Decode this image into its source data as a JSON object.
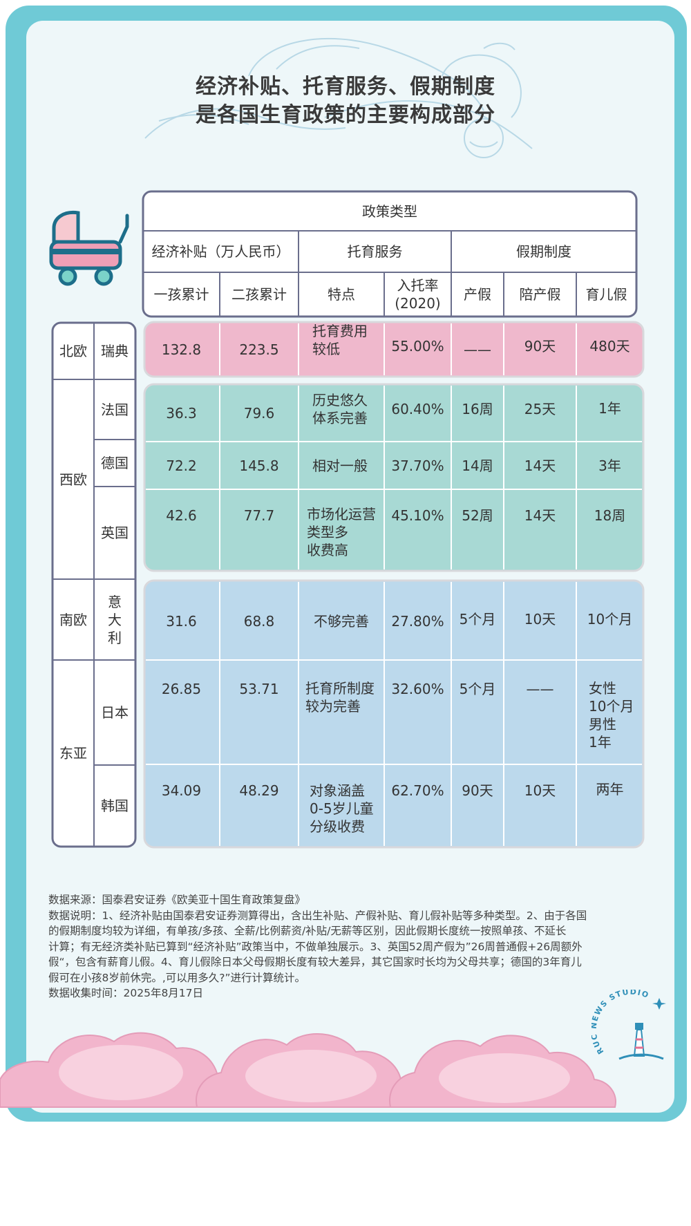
{
  "title_line1": "经济补贴、托育服务、假期制度",
  "title_line2": "是各国生育政策的主要构成部分",
  "header": {
    "policy_type": "政策类型",
    "group_subsidy": "经济补贴（万人民币）",
    "group_childcare": "托育服务",
    "group_leave": "假期制度",
    "col_first_child": "一孩累计",
    "col_second_child": "二孩累计",
    "col_feature": "特点",
    "col_enrollment_line1": "入托率",
    "col_enrollment_line2": "(2020)",
    "col_maternity": "产假",
    "col_paternity": "陪产假",
    "col_parental": "育儿假"
  },
  "regions": {
    "nordic": "北欧",
    "west_europe": "西欧",
    "south_europe": "南欧",
    "east_asia": "东亚"
  },
  "rows": [
    {
      "country": "瑞典",
      "first": "132.8",
      "second": "223.5",
      "feature": [
        "托育费用",
        "较低"
      ],
      "rate": "55.00%",
      "maternity": "——",
      "paternity": "90天",
      "parental": [
        "480天"
      ]
    },
    {
      "country": "法国",
      "first": "36.3",
      "second": "79.6",
      "feature": [
        "历史悠久",
        "体系完善"
      ],
      "rate": "60.40%",
      "maternity": "16周",
      "paternity": "25天",
      "parental": [
        "1年"
      ]
    },
    {
      "country": "德国",
      "first": "72.2",
      "second": "145.8",
      "feature": [
        "相对一般"
      ],
      "rate": "37.70%",
      "maternity": "14周",
      "paternity": "14天",
      "parental": [
        "3年"
      ]
    },
    {
      "country": "英国",
      "first": "42.6",
      "second": "77.7",
      "feature": [
        "市场化运营",
        "类型多",
        "收费高"
      ],
      "rate": "45.10%",
      "maternity": "52周",
      "paternity": "14天",
      "parental": [
        "18周"
      ]
    },
    {
      "country": "意大利",
      "first": "31.6",
      "second": "68.8",
      "feature": [
        "不够完善"
      ],
      "rate": "27.80%",
      "maternity": "5个月",
      "paternity": "10天",
      "parental": [
        "10个月"
      ]
    },
    {
      "country": "日本",
      "first": "26.85",
      "second": "53.71",
      "feature": [
        "托育所制度",
        "较为完善"
      ],
      "rate": "32.60%",
      "maternity": "5个月",
      "paternity": "——",
      "parental": [
        "女性",
        "10个月",
        "男性",
        "1年"
      ]
    },
    {
      "country": "韩国",
      "first": "34.09",
      "second": "48.29",
      "feature": [
        "对象涵盖",
        "0-5岁儿童",
        "分级收费"
      ],
      "rate": "62.70%",
      "maternity": "90天",
      "paternity": "10天",
      "parental": [
        "两年"
      ]
    }
  ],
  "notes": {
    "source": "数据来源：国泰君安证券《欧美亚十国生育政策复盘》",
    "desc_line1": "数据说明：1、经济补贴由国泰君安证券测算得出，含出生补贴、产假补贴、育儿假补贴等多种类型。2、由于各国",
    "desc_line2": "的假期制度均较为详细，有单孩/多孩、全薪/比例薪资/补贴/无薪等区别，因此假期长度统一按照单孩、不延长",
    "desc_line3": "计算；有无经济类补贴已算到“经济补贴”政策当中，不做单独展示。3、英国52周产假为”26周普通假+26周额外",
    "desc_line4": "假“，包含有薪育儿假。4、育儿假除日本父母假期长度有较大差异，其它国家时长均为父母共享；德国的3年育儿",
    "desc_line5": "假可在小孩8岁前休完。,可以用多久?”进行计算统计。",
    "collected": "数据收集时间：2025年8月17日"
  },
  "logo_text": "RUC NEWS STUDIO",
  "colors": {
    "frame": "#6fcad6",
    "inner_bg": "#eef7f9",
    "nordic_row": "#efb8cc",
    "west_rows": "#a8d9d4",
    "east_rows": "#bcd9ec",
    "border": "#6a6e8c",
    "cloud_pink": "#f2b5cc"
  },
  "icons": [
    "stroller-icon",
    "stork-icon",
    "lighthouse-icon"
  ]
}
